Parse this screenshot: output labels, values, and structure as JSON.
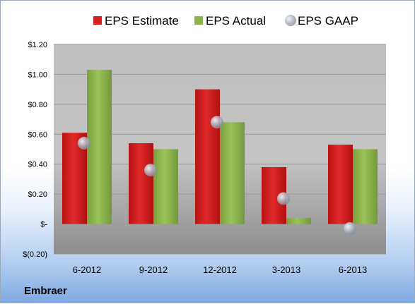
{
  "company": "Embraer",
  "chart_data": {
    "type": "bar",
    "categories": [
      "6-2012",
      "9-2012",
      "12-2012",
      "3-2013",
      "6-2013"
    ],
    "series": [
      {
        "name": "EPS Estimate",
        "values": [
          0.61,
          0.54,
          0.9,
          0.38,
          0.53
        ],
        "color": "#d42020",
        "kind": "bar"
      },
      {
        "name": "EPS Actual",
        "values": [
          1.03,
          0.5,
          0.68,
          0.04,
          0.5
        ],
        "color": "#8db34e",
        "kind": "bar"
      },
      {
        "name": "EPS GAAP",
        "values": [
          0.54,
          0.36,
          0.68,
          0.17,
          -0.03
        ],
        "color": "#a6aebb",
        "kind": "marker"
      }
    ],
    "yticks": [
      {
        "value": 1.2,
        "label": "$1.20"
      },
      {
        "value": 1.0,
        "label": "$1.00"
      },
      {
        "value": 0.8,
        "label": "$0.80"
      },
      {
        "value": 0.6,
        "label": "$0.60"
      },
      {
        "value": 0.4,
        "label": "$0.40"
      },
      {
        "value": 0.2,
        "label": "$0.20"
      },
      {
        "value": 0.0,
        "label": "$-"
      },
      {
        "value": -0.2,
        "label": "$(0.20)"
      }
    ],
    "ylim": [
      -0.2,
      1.2
    ],
    "legend_position": "top",
    "grid": true
  }
}
